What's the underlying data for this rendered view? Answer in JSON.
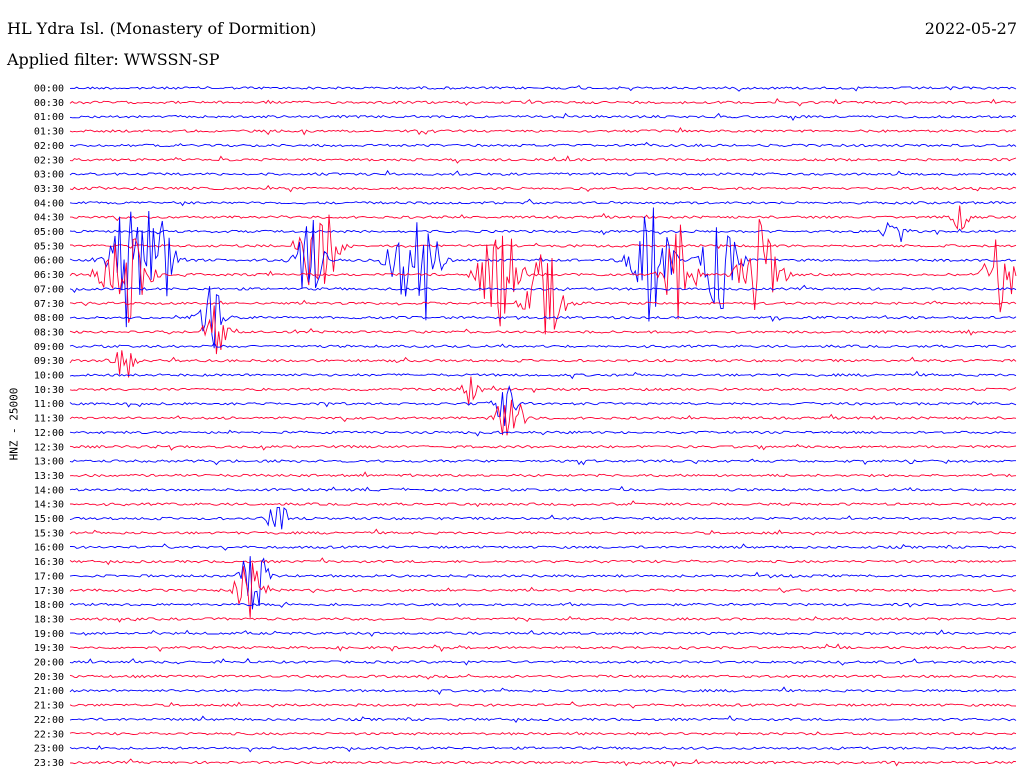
{
  "header": {
    "station": "HL Ydra Isl. (Monastery of Dormition)",
    "date": "2022-05-27",
    "filter": "Applied filter: WWSSN-SP",
    "channel": "HNZ - 25000"
  },
  "chart_data": {
    "type": "line",
    "title": "HL Ydra Isl. (Monastery of Dormition)",
    "subtitle": "Applied filter: WWSSN-SP",
    "ylabel": "HNZ - 25000",
    "xlabel": "",
    "row_interval_minutes": 30,
    "rows": [
      "00:00",
      "00:30",
      "01:00",
      "01:30",
      "02:00",
      "02:30",
      "03:00",
      "03:30",
      "04:00",
      "04:30",
      "05:00",
      "05:30",
      "06:00",
      "06:30",
      "07:00",
      "07:30",
      "08:00",
      "08:30",
      "09:00",
      "09:30",
      "10:00",
      "10:30",
      "11:00",
      "11:30",
      "12:00",
      "12:30",
      "13:00",
      "13:30",
      "14:00",
      "14:30",
      "15:00",
      "15:30",
      "16:00",
      "16:30",
      "17:00",
      "17:30",
      "18:00",
      "18:30",
      "19:00",
      "19:30",
      "20:00",
      "20:30",
      "21:00",
      "21:30",
      "22:00",
      "22:30",
      "23:00",
      "23:30"
    ],
    "colors": [
      "#0000ff",
      "#ff0033"
    ],
    "grid": false,
    "legend": "none"
  }
}
